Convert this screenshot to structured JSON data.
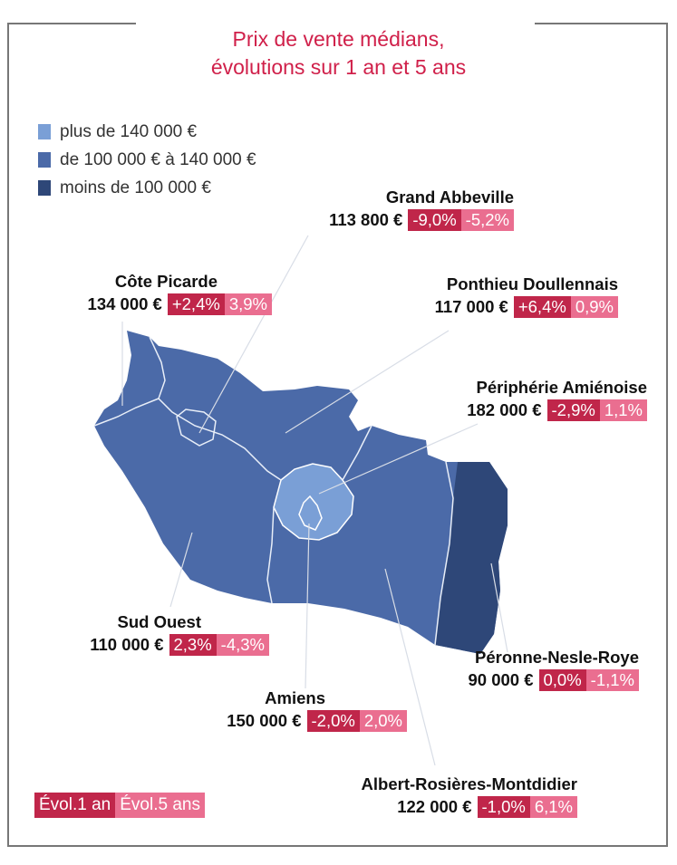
{
  "title_line1": "Prix de vente médians,",
  "title_line2": "évolutions sur 1 an et 5 ans",
  "legend": [
    {
      "label": "plus de 140 000 €",
      "color": "#7a9fd6"
    },
    {
      "label": "de 100 000 € à 140 000 €",
      "color": "#4b6aa8"
    },
    {
      "label": "moins de 100 000 €",
      "color": "#2e4778"
    }
  ],
  "colors": {
    "evol_1an": "#c0264a",
    "evol_5ans": "#ea6e90",
    "title": "#d0204a"
  },
  "regions": [
    {
      "name": "Grand Abbeville",
      "price": "113 800 €",
      "evol_1an": "-9,0%",
      "evol_5ans": "-5,2%"
    },
    {
      "name": "Côte Picarde",
      "price": "134 000 €",
      "evol_1an": "+2,4%",
      "evol_5ans": "3,9%"
    },
    {
      "name": "Ponthieu Doullennais",
      "price": "117 000 €",
      "evol_1an": "+6,4%",
      "evol_5ans": "0,9%"
    },
    {
      "name": "Périphérie Amiénoise",
      "price": "182 000 €",
      "evol_1an": "-2,9%",
      "evol_5ans": "1,1%"
    },
    {
      "name": "Sud Ouest",
      "price": "110 000 €",
      "evol_1an": "2,3%",
      "evol_5ans": "-4,3%"
    },
    {
      "name": "Péronne-Nesle-Roye",
      "price": "90 000 €",
      "evol_1an": "0,0%",
      "evol_5ans": "-1,1%"
    },
    {
      "name": "Amiens",
      "price": "150 000 €",
      "evol_1an": "-2,0%",
      "evol_5ans": "2,0%"
    },
    {
      "name": "Albert-Rosières-Montdidier",
      "price": "122 000 €",
      "evol_1an": "-1,0%",
      "evol_5ans": "6,1%"
    }
  ],
  "key": {
    "evol_1an": "Évol.1 an",
    "evol_5ans": "Évol.5 ans"
  }
}
